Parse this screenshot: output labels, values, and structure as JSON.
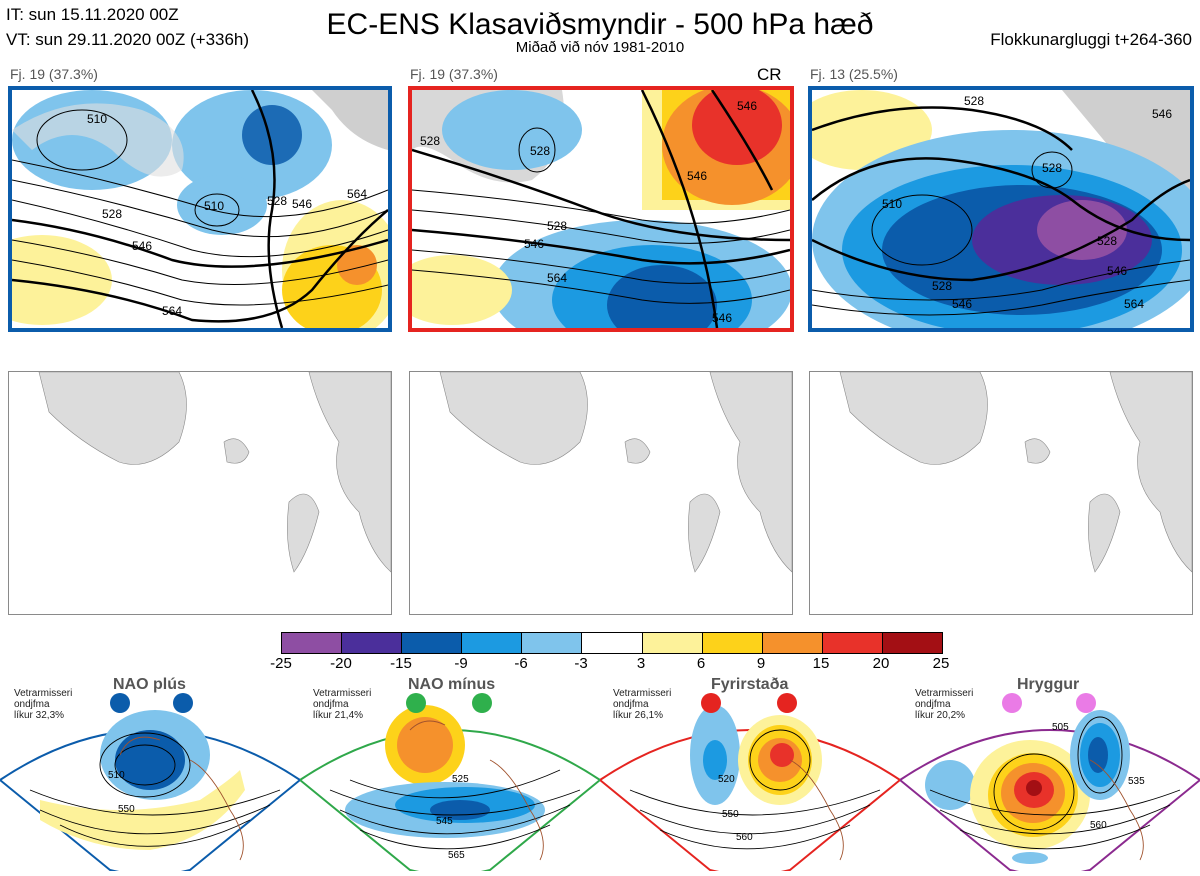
{
  "header": {
    "it_line": "IT: sun 15.11.2020 00Z",
    "vt_line": "VT: sun 29.11.2020 00Z  (+336h)",
    "title": "EC-ENS Klasaviðsmyndir - 500 hPa hæð",
    "subtitle": "Miðað við nóv 1981-2010",
    "window": "Flokkunargluggi t+264-360"
  },
  "panels": [
    {
      "label": "Fj. 19 (37.3%)",
      "tag": "",
      "border_color": "#0b5cab",
      "contours": [
        "510",
        "510",
        "528",
        "528",
        "546",
        "546",
        "564",
        "564"
      ]
    },
    {
      "label": "Fj. 19 (37.3%)",
      "tag": "CR",
      "border_color": "#e52420",
      "contours": [
        "528",
        "546",
        "546",
        "528",
        "546",
        "564",
        "546",
        "528"
      ]
    },
    {
      "label": "Fj. 13 (25.5%)",
      "tag": "",
      "border_color": "#0b5cab",
      "contours": [
        "510",
        "528",
        "528",
        "546",
        "546",
        "564",
        "546",
        "528",
        "528"
      ]
    }
  ],
  "colorbar": {
    "labels": [
      "-25",
      "-20",
      "-15",
      "-9",
      "-6",
      "-3",
      "3",
      "6",
      "9",
      "15",
      "20",
      "25"
    ],
    "colors": [
      "#8e4ea3",
      "#4b2f9b",
      "#0b5cab",
      "#1c9ae1",
      "#7fc4ec",
      "#ffffff",
      "#fdf29a",
      "#fdd21a",
      "#f5912c",
      "#e8322a",
      "#a30f14"
    ]
  },
  "regimes": [
    {
      "name": "NAO plús",
      "note": [
        "Vetrarmisseri",
        "ondjfma",
        "líkur 32,3%"
      ],
      "color": "#0b5cab",
      "dot_color": "#0b5cab",
      "contours": [
        "510",
        "550"
      ]
    },
    {
      "name": "NAO mínus",
      "note": [
        "Vetrarmisseri",
        "ondjfma",
        "líkur 21,4%"
      ],
      "color": "#2fa84a",
      "dot_color": "#2fb04c",
      "contours": [
        "525",
        "545",
        "565"
      ]
    },
    {
      "name": "Fyrirstaða",
      "note": [
        "Vetrarmisseri",
        "ondjfma",
        "líkur 26,1%"
      ],
      "color": "#e52420",
      "dot_color": "#e52420",
      "contours": [
        "520",
        "550",
        "560"
      ]
    },
    {
      "name": "Hryggur",
      "note": [
        "Vetrarmisseri",
        "ondjfma",
        "líkur 20,2%"
      ],
      "color": "#8b2a8f",
      "dot_color": "#ea7be6",
      "contours": [
        "505",
        "535",
        "560"
      ]
    }
  ]
}
